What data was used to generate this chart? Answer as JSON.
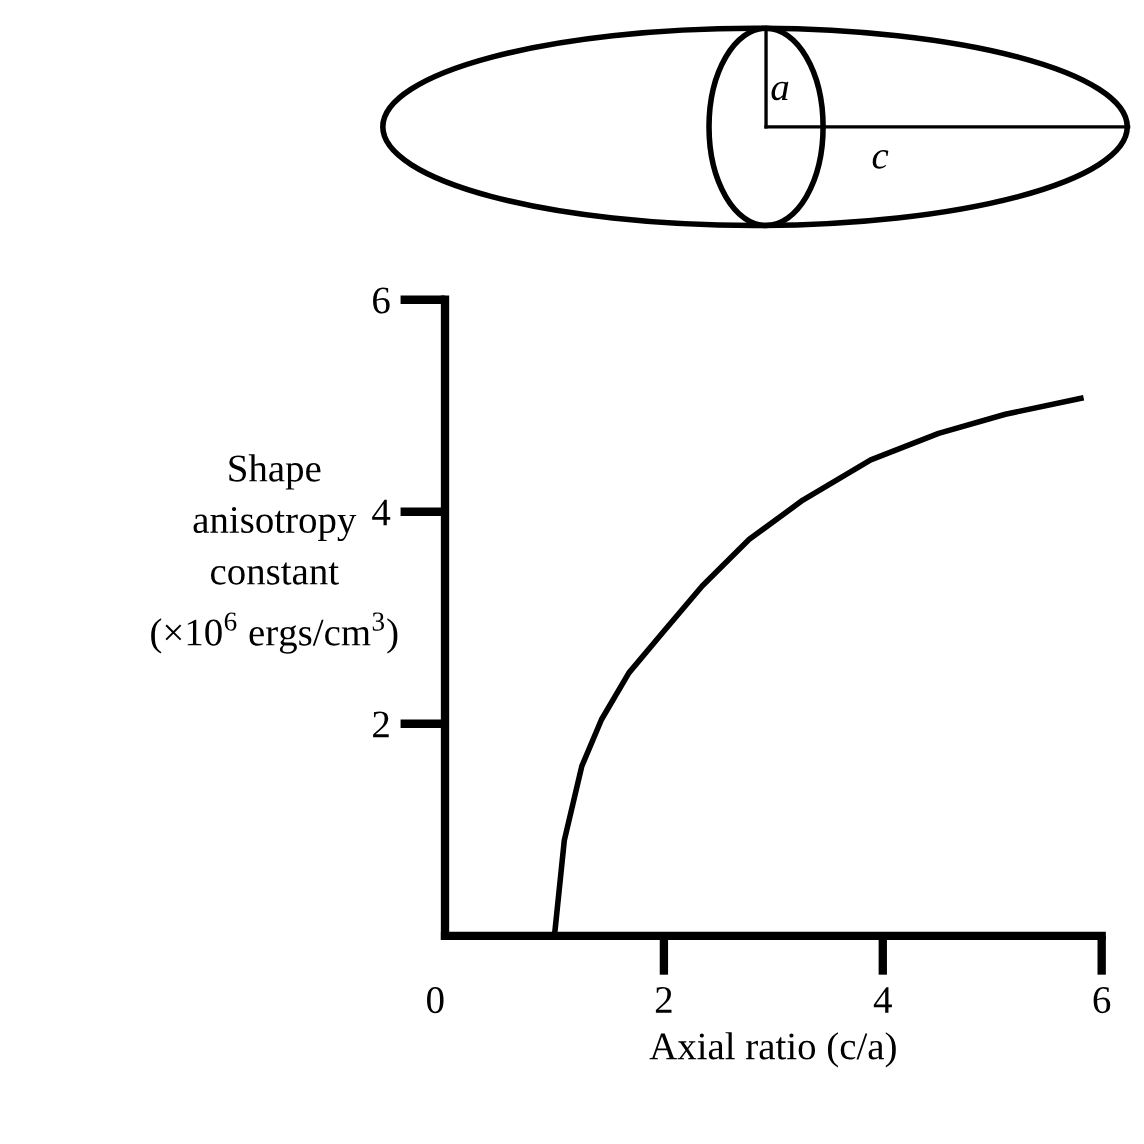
{
  "chart_data": {
    "type": "line",
    "xlabel": "Axial ratio (c/a)",
    "ylabel": "Shape\nanisotropy\nconstant\n(×10$^{6}$ ergs/cm$^{3}$)",
    "annotations": [
      "a",
      "c"
    ],
    "series": [
      {
        "color": "#000000",
        "x": [
          1.0,
          1.09,
          1.25,
          1.43,
          1.68,
          1.98,
          2.35,
          2.78,
          3.27,
          3.89,
          4.51,
          5.12,
          5.81
        ],
        "values": [
          0,
          0.9,
          1.6,
          2.04,
          2.48,
          2.85,
          3.3,
          3.74,
          4.11,
          4.49,
          4.74,
          4.92,
          5.07
        ]
      }
    ],
    "xlim": [
      0,
      6
    ],
    "xticks": [
      {
        "value": 0,
        "label": "0"
      },
      2,
      4,
      6
    ],
    "ylim": [
      0,
      6
    ],
    "yticks": [
      2,
      4,
      6
    ],
    "grid": false,
    "legend": false,
    "marker": "none",
    "line_style": "solid"
  }
}
